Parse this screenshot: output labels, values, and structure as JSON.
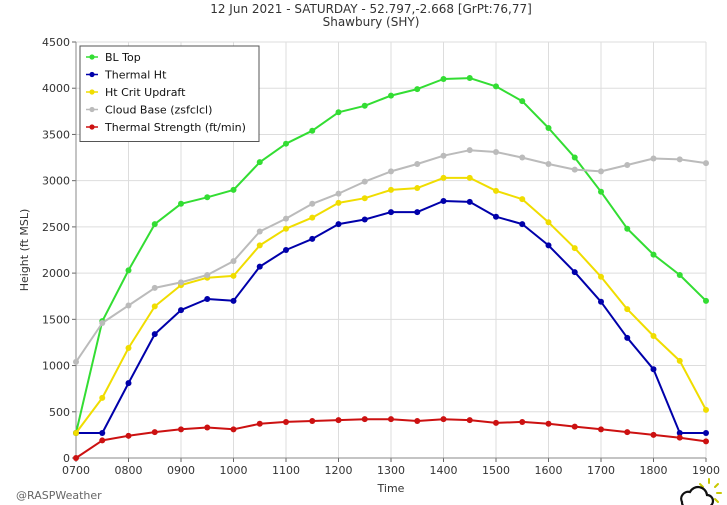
{
  "header": {
    "title": "12 Jun 2021 - SATURDAY - 52.797,-2.668 [GrPt:76,77]",
    "subtitle": "Shawbury (SHY)"
  },
  "footer": {
    "credit": "@RASPWeather",
    "logo_icon": "cloud-sun-icon"
  },
  "chart_data": {
    "type": "line",
    "title": "12 Jun 2021 - SATURDAY - 52.797,-2.668 [GrPt:76,77]",
    "subtitle": "Shawbury (SHY)",
    "xlabel": "Time",
    "ylabel": "Height (ft MSL)",
    "x": [
      "0700",
      "0730",
      "0800",
      "0830",
      "0900",
      "0930",
      "1000",
      "1030",
      "1100",
      "1130",
      "1200",
      "1230",
      "1300",
      "1330",
      "1400",
      "1430",
      "1500",
      "1530",
      "1600",
      "1630",
      "1700",
      "1730",
      "1800",
      "1830",
      "1900"
    ],
    "x_tick_labels": [
      "0700",
      "0800",
      "0900",
      "1000",
      "1100",
      "1200",
      "1300",
      "1400",
      "1500",
      "1600",
      "1700",
      "1800",
      "1900"
    ],
    "ylim": [
      0,
      4500
    ],
    "y_ticks": [
      0,
      500,
      1000,
      1500,
      2000,
      2500,
      3000,
      3500,
      4000,
      4500
    ],
    "grid": true,
    "legend_position": "top-left",
    "series": [
      {
        "name": "BL Top",
        "color": "#33dd33",
        "values": [
          270,
          1480,
          2030,
          2530,
          2750,
          2820,
          2900,
          3200,
          3400,
          3540,
          3740,
          3810,
          3920,
          3990,
          4100,
          4110,
          4020,
          3860,
          3570,
          3250,
          2880,
          2480,
          2200,
          1980,
          1700
        ]
      },
      {
        "name": "Thermal Ht",
        "color": "#0000aa",
        "values": [
          270,
          270,
          810,
          1340,
          1600,
          1720,
          1700,
          2070,
          2250,
          2370,
          2530,
          2580,
          2660,
          2660,
          2780,
          2770,
          2610,
          2530,
          2300,
          2010,
          1690,
          1300,
          960,
          270,
          270
        ]
      },
      {
        "name": "Ht Crit Updraft",
        "color": "#f0dd00",
        "values": [
          270,
          650,
          1190,
          1640,
          1870,
          1950,
          1970,
          2300,
          2480,
          2600,
          2760,
          2810,
          2900,
          2920,
          3030,
          3030,
          2890,
          2800,
          2550,
          2270,
          1960,
          1610,
          1320,
          1050,
          520
        ]
      },
      {
        "name": "Cloud Base (zsfclcl)",
        "color": "#bbbbbb",
        "values": [
          1040,
          1460,
          1650,
          1840,
          1900,
          1980,
          2130,
          2450,
          2590,
          2750,
          2860,
          2990,
          3100,
          3180,
          3270,
          3330,
          3310,
          3250,
          3180,
          3120,
          3100,
          3170,
          3240,
          3230,
          3190
        ]
      },
      {
        "name": "Thermal Strength (ft/min)",
        "color": "#cc1111",
        "values": [
          0,
          190,
          240,
          280,
          310,
          330,
          310,
          370,
          390,
          400,
          410,
          420,
          420,
          400,
          420,
          410,
          380,
          390,
          370,
          340,
          310,
          280,
          250,
          220,
          180
        ]
      }
    ]
  }
}
